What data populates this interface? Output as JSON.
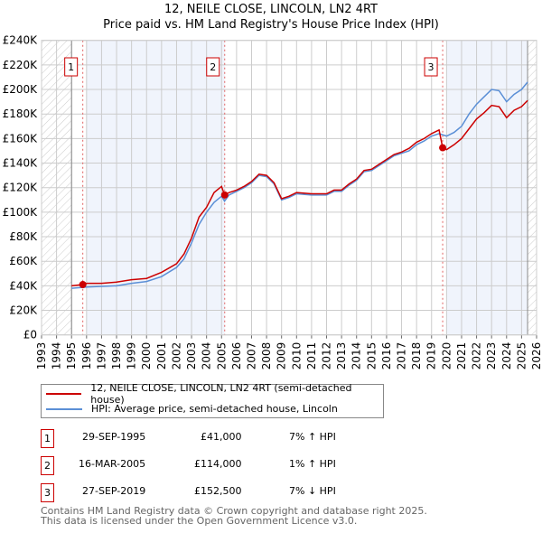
{
  "chart_data": {
    "type": "line",
    "title": "12, NEILE CLOSE, LINCOLN, LN2 4RT",
    "subtitle": "Price paid vs. HM Land Registry's House Price Index (HPI)",
    "xlim": [
      1993,
      2026
    ],
    "ylim": [
      0,
      240000
    ],
    "x_ticks": [
      "1993",
      "1994",
      "1995",
      "1996",
      "1997",
      "1998",
      "1999",
      "2000",
      "2001",
      "2002",
      "2003",
      "2004",
      "2005",
      "2006",
      "2007",
      "2008",
      "2009",
      "2010",
      "2011",
      "2012",
      "2013",
      "2014",
      "2015",
      "2016",
      "2017",
      "2018",
      "2019",
      "2020",
      "2021",
      "2022",
      "2023",
      "2024",
      "2025",
      "2026"
    ],
    "y_ticks": [
      "£0",
      "£20K",
      "£40K",
      "£60K",
      "£80K",
      "£100K",
      "£120K",
      "£140K",
      "£160K",
      "£180K",
      "£200K",
      "£220K",
      "£240K"
    ],
    "grid": true,
    "series": [
      {
        "name": "12, NEILE CLOSE, LINCOLN, LN2 4RT (semi-detached house)",
        "color": "#cc0000",
        "x": [
          1995,
          1995.75,
          1996,
          1997,
          1998,
          1999,
          2000,
          2001,
          2002,
          2002.5,
          2003,
          2003.5,
          2004,
          2004.5,
          2005,
          2005.2,
          2005.5,
          2006,
          2006.5,
          2007,
          2007.5,
          2008,
          2008.5,
          2009,
          2009.5,
          2010,
          2011,
          2012,
          2012.5,
          2013,
          2013.5,
          2014,
          2014.5,
          2015,
          2015.5,
          2016,
          2016.5,
          2017,
          2017.5,
          2018,
          2018.5,
          2019,
          2019.5,
          2019.74,
          2020,
          2020.5,
          2021,
          2021.5,
          2022,
          2022.5,
          2023,
          2023.5,
          2024,
          2024.5,
          2025,
          2025.4
        ],
        "y": [
          40000,
          41000,
          42000,
          42000,
          43000,
          45000,
          46000,
          51000,
          58000,
          66000,
          79000,
          96000,
          104000,
          116000,
          121000,
          114000,
          116000,
          118000,
          121000,
          125000,
          131000,
          130000,
          124000,
          111000,
          113000,
          116000,
          115000,
          115000,
          118000,
          118000,
          123000,
          127000,
          134000,
          135000,
          139000,
          143000,
          147000,
          149000,
          152000,
          157000,
          160000,
          164000,
          167000,
          152500,
          151000,
          155000,
          160000,
          168000,
          176000,
          181000,
          187000,
          186000,
          177000,
          183000,
          186000,
          191000
        ]
      },
      {
        "name": "HPI: Average price, semi-detached house, Lincoln",
        "color": "#5b8fd6",
        "x": [
          1995,
          1996,
          1997,
          1998,
          1999,
          2000,
          2001,
          2002,
          2002.5,
          2003,
          2003.5,
          2004,
          2004.5,
          2005,
          2005.2,
          2005.5,
          2006,
          2006.5,
          2007,
          2007.5,
          2008,
          2008.5,
          2009,
          2009.5,
          2010,
          2011,
          2012,
          2012.5,
          2013,
          2013.5,
          2014,
          2014.5,
          2015,
          2015.5,
          2016,
          2016.5,
          2017,
          2017.5,
          2018,
          2018.5,
          2019,
          2019.5,
          2020,
          2020.5,
          2021,
          2021.5,
          2022,
          2022.5,
          2023,
          2023.5,
          2024,
          2024.5,
          2025,
          2025.4
        ],
        "y": [
          38000,
          39000,
          39500,
          40000,
          42000,
          43500,
          47500,
          55000,
          62000,
          75000,
          90000,
          100000,
          108000,
          113000,
          109000,
          114000,
          117000,
          120000,
          124000,
          130000,
          129000,
          123000,
          110000,
          112000,
          115000,
          114000,
          114000,
          117000,
          117000,
          122000,
          126000,
          133000,
          134000,
          138000,
          142000,
          146000,
          148000,
          150000,
          155000,
          158000,
          162000,
          164000,
          162000,
          165000,
          170000,
          180000,
          188000,
          194000,
          200000,
          199000,
          190000,
          196000,
          200000,
          206000
        ]
      }
    ],
    "sales": [
      {
        "label": "1",
        "x": 1995.75,
        "y": 41000,
        "date": "29-SEP-1995",
        "price": "£41,000",
        "hpi": "7% ↑ HPI"
      },
      {
        "label": "2",
        "x": 2005.21,
        "y": 114000,
        "date": "16-MAR-2005",
        "price": "£114,000",
        "hpi": "1% ↑ HPI"
      },
      {
        "label": "3",
        "x": 2019.74,
        "y": 152500,
        "date": "27-SEP-2019",
        "price": "£152,500",
        "hpi": "7% ↓ HPI"
      }
    ],
    "legend_placement": "below"
  },
  "footer": {
    "line1": "Contains HM Land Registry data © Crown copyright and database right 2025.",
    "line2": "This data is licensed under the Open Government Licence v3.0."
  }
}
